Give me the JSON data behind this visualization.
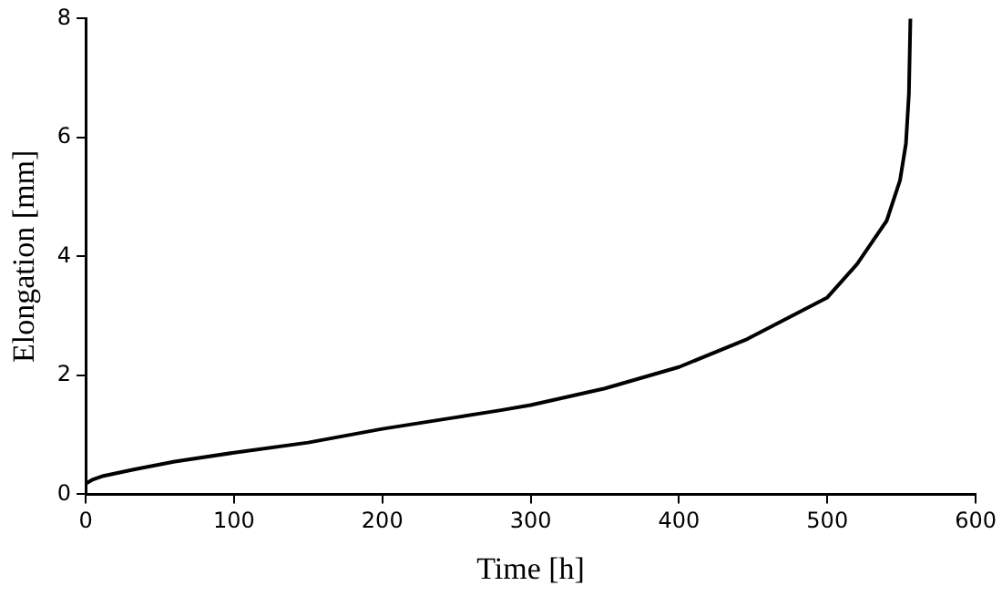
{
  "chart_data": {
    "type": "line",
    "xlabel": "Time [h]",
    "ylabel": "Elongation [mm]",
    "x": [
      0,
      5,
      12,
      33,
      60,
      100,
      150,
      200,
      246,
      279,
      300,
      350,
      400,
      446,
      500,
      520,
      540,
      549,
      553,
      555,
      556
    ],
    "series": [
      {
        "color": "#000000",
        "values": [
          0.18,
          0.25,
          0.31,
          0.42,
          0.55,
          0.7,
          0.87,
          1.1,
          1.28,
          1.41,
          1.5,
          1.78,
          2.14,
          2.61,
          3.31,
          3.87,
          4.6,
          5.28,
          5.9,
          6.74,
          8
        ]
      }
    ],
    "xlim": [
      0,
      600
    ],
    "xticks": [
      0,
      100,
      200,
      300,
      400,
      500,
      600
    ],
    "ylim": [
      0,
      8
    ],
    "yticks": [
      0,
      2,
      4,
      6,
      8
    ],
    "grid": false,
    "legend": false,
    "marker": "none",
    "line_style": "solid"
  }
}
